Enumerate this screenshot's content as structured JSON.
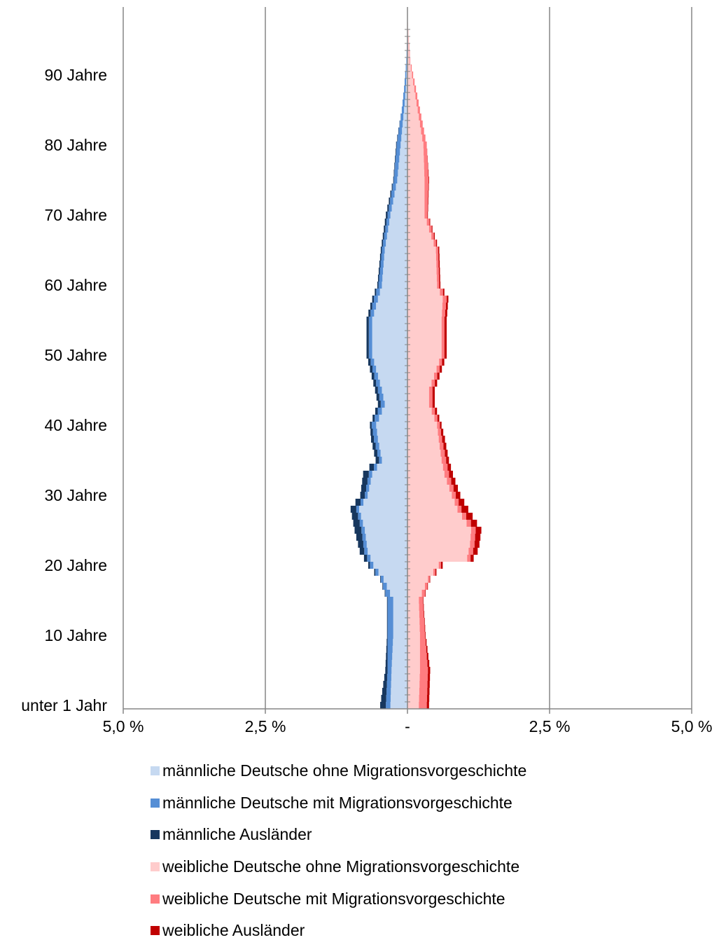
{
  "chart_data": {
    "type": "bar",
    "subtype": "population-pyramid",
    "orientation": "horizontal",
    "stacked": true,
    "xlim": [
      -5.0,
      5.0
    ],
    "x_tick_labels": [
      "5,0 %",
      "2,5 %",
      "-",
      "2,5 %",
      "5,0 %"
    ],
    "x_tick_values": [
      -5.0,
      -2.5,
      0,
      2.5,
      5.0
    ],
    "y_tick_labels": [
      {
        "age": 0,
        "label": "unter 1 Jahr"
      },
      {
        "age": 10,
        "label": "10 Jahre"
      },
      {
        "age": 20,
        "label": "20 Jahre"
      },
      {
        "age": 30,
        "label": "30 Jahre"
      },
      {
        "age": 40,
        "label": "40 Jahre"
      },
      {
        "age": 50,
        "label": "50 Jahre"
      },
      {
        "age": 60,
        "label": "60 Jahre"
      },
      {
        "age": 70,
        "label": "70 Jahre"
      },
      {
        "age": 80,
        "label": "80 Jahre"
      },
      {
        "age": 90,
        "label": "90 Jahre"
      }
    ],
    "age_range": [
      0,
      97
    ],
    "gridlines": "vertical",
    "legend_position": "bottom",
    "series": [
      {
        "name": "männliche Deutsche ohne Migrationsvorgeschichte",
        "color": "#c6d9f1",
        "side": "left",
        "age_points": [
          [
            0,
            0.3
          ],
          [
            5,
            0.28
          ],
          [
            10,
            0.25
          ],
          [
            15,
            0.25
          ],
          [
            18,
            0.42
          ],
          [
            20,
            0.6
          ],
          [
            22,
            0.7
          ],
          [
            25,
            0.75
          ],
          [
            28,
            0.85
          ],
          [
            30,
            0.7
          ],
          [
            33,
            0.62
          ],
          [
            35,
            0.45
          ],
          [
            38,
            0.52
          ],
          [
            40,
            0.55
          ],
          [
            43,
            0.4
          ],
          [
            45,
            0.45
          ],
          [
            50,
            0.62
          ],
          [
            55,
            0.62
          ],
          [
            58,
            0.52
          ],
          [
            60,
            0.45
          ],
          [
            65,
            0.4
          ],
          [
            70,
            0.3
          ],
          [
            75,
            0.18
          ],
          [
            80,
            0.12
          ],
          [
            85,
            0.06
          ],
          [
            88,
            0.03
          ],
          [
            90,
            0.02
          ],
          [
            92,
            0.01
          ],
          [
            97,
            0.0
          ]
        ]
      },
      {
        "name": "männliche Deutsche mit Migrationsvorgeschichte",
        "color": "#558ed5",
        "side": "left",
        "age_points": [
          [
            0,
            0.08
          ],
          [
            5,
            0.07
          ],
          [
            10,
            0.1
          ],
          [
            15,
            0.1
          ],
          [
            18,
            0.05
          ],
          [
            20,
            0.06
          ],
          [
            22,
            0.06
          ],
          [
            25,
            0.06
          ],
          [
            28,
            0.05
          ],
          [
            30,
            0.05
          ],
          [
            33,
            0.06
          ],
          [
            35,
            0.05
          ],
          [
            38,
            0.07
          ],
          [
            40,
            0.08
          ],
          [
            43,
            0.07
          ],
          [
            45,
            0.07
          ],
          [
            50,
            0.06
          ],
          [
            55,
            0.06
          ],
          [
            58,
            0.07
          ],
          [
            60,
            0.06
          ],
          [
            65,
            0.05
          ],
          [
            70,
            0.05
          ],
          [
            75,
            0.06
          ],
          [
            80,
            0.07
          ],
          [
            85,
            0.04
          ],
          [
            88,
            0.03
          ],
          [
            90,
            0.02
          ],
          [
            92,
            0.01
          ],
          [
            97,
            0.0
          ]
        ]
      },
      {
        "name": "männliche Ausländer",
        "color": "#17375e",
        "side": "left",
        "age_points": [
          [
            0,
            0.1
          ],
          [
            5,
            0.04
          ],
          [
            10,
            0.01
          ],
          [
            15,
            0.01
          ],
          [
            18,
            0.01
          ],
          [
            20,
            0.03
          ],
          [
            22,
            0.08
          ],
          [
            25,
            0.12
          ],
          [
            28,
            0.1
          ],
          [
            30,
            0.08
          ],
          [
            33,
            0.1
          ],
          [
            35,
            0.06
          ],
          [
            38,
            0.05
          ],
          [
            40,
            0.03
          ],
          [
            43,
            0.05
          ],
          [
            45,
            0.05
          ],
          [
            50,
            0.04
          ],
          [
            55,
            0.04
          ],
          [
            58,
            0.03
          ],
          [
            60,
            0.02
          ],
          [
            65,
            0.02
          ],
          [
            70,
            0.03
          ],
          [
            75,
            0.01
          ],
          [
            80,
            0.01
          ],
          [
            85,
            0.0
          ],
          [
            97,
            0.0
          ]
        ]
      },
      {
        "name": "weibliche Deutsche ohne Migrationsvorgeschichte",
        "color": "#ffcccc",
        "side": "right",
        "age_points": [
          [
            0,
            0.2
          ],
          [
            5,
            0.22
          ],
          [
            10,
            0.22
          ],
          [
            15,
            0.2
          ],
          [
            18,
            0.36
          ],
          [
            20,
            0.55
          ],
          [
            21,
            1.05
          ],
          [
            23,
            1.1
          ],
          [
            25,
            1.12
          ],
          [
            28,
            0.88
          ],
          [
            30,
            0.78
          ],
          [
            33,
            0.65
          ],
          [
            35,
            0.6
          ],
          [
            38,
            0.55
          ],
          [
            40,
            0.52
          ],
          [
            43,
            0.38
          ],
          [
            45,
            0.38
          ],
          [
            50,
            0.6
          ],
          [
            55,
            0.6
          ],
          [
            58,
            0.62
          ],
          [
            60,
            0.52
          ],
          [
            65,
            0.5
          ],
          [
            70,
            0.3
          ],
          [
            75,
            0.3
          ],
          [
            80,
            0.28
          ],
          [
            85,
            0.18
          ],
          [
            88,
            0.12
          ],
          [
            90,
            0.08
          ],
          [
            92,
            0.04
          ],
          [
            97,
            0.01
          ]
        ]
      },
      {
        "name": "weibliche Deutsche mit Migrationsvorgeschichte",
        "color": "#ff7c80",
        "side": "right",
        "age_points": [
          [
            0,
            0.14
          ],
          [
            5,
            0.14
          ],
          [
            10,
            0.09
          ],
          [
            15,
            0.07
          ],
          [
            18,
            0.03
          ],
          [
            20,
            0.04
          ],
          [
            22,
            0.08
          ],
          [
            25,
            0.08
          ],
          [
            28,
            0.07
          ],
          [
            30,
            0.07
          ],
          [
            33,
            0.08
          ],
          [
            35,
            0.08
          ],
          [
            38,
            0.06
          ],
          [
            40,
            0.05
          ],
          [
            43,
            0.06
          ],
          [
            45,
            0.06
          ],
          [
            50,
            0.05
          ],
          [
            55,
            0.05
          ],
          [
            58,
            0.07
          ],
          [
            60,
            0.04
          ],
          [
            65,
            0.04
          ],
          [
            70,
            0.05
          ],
          [
            75,
            0.07
          ],
          [
            80,
            0.06
          ],
          [
            85,
            0.04
          ],
          [
            88,
            0.03
          ],
          [
            90,
            0.02
          ],
          [
            92,
            0.01
          ],
          [
            97,
            0.0
          ]
        ]
      },
      {
        "name": "weibliche Ausländer",
        "color": "#c00000",
        "side": "right",
        "age_points": [
          [
            0,
            0.04
          ],
          [
            5,
            0.04
          ],
          [
            10,
            0.01
          ],
          [
            15,
            0.01
          ],
          [
            18,
            0.01
          ],
          [
            20,
            0.03
          ],
          [
            22,
            0.08
          ],
          [
            25,
            0.1
          ],
          [
            28,
            0.12
          ],
          [
            30,
            0.08
          ],
          [
            33,
            0.07
          ],
          [
            35,
            0.05
          ],
          [
            38,
            0.05
          ],
          [
            40,
            0.03
          ],
          [
            43,
            0.04
          ],
          [
            45,
            0.04
          ],
          [
            50,
            0.04
          ],
          [
            55,
            0.04
          ],
          [
            58,
            0.03
          ],
          [
            60,
            0.02
          ],
          [
            65,
            0.02
          ],
          [
            70,
            0.01
          ],
          [
            75,
            0.01
          ],
          [
            80,
            0.0
          ],
          [
            97,
            0.0
          ]
        ]
      }
    ]
  }
}
